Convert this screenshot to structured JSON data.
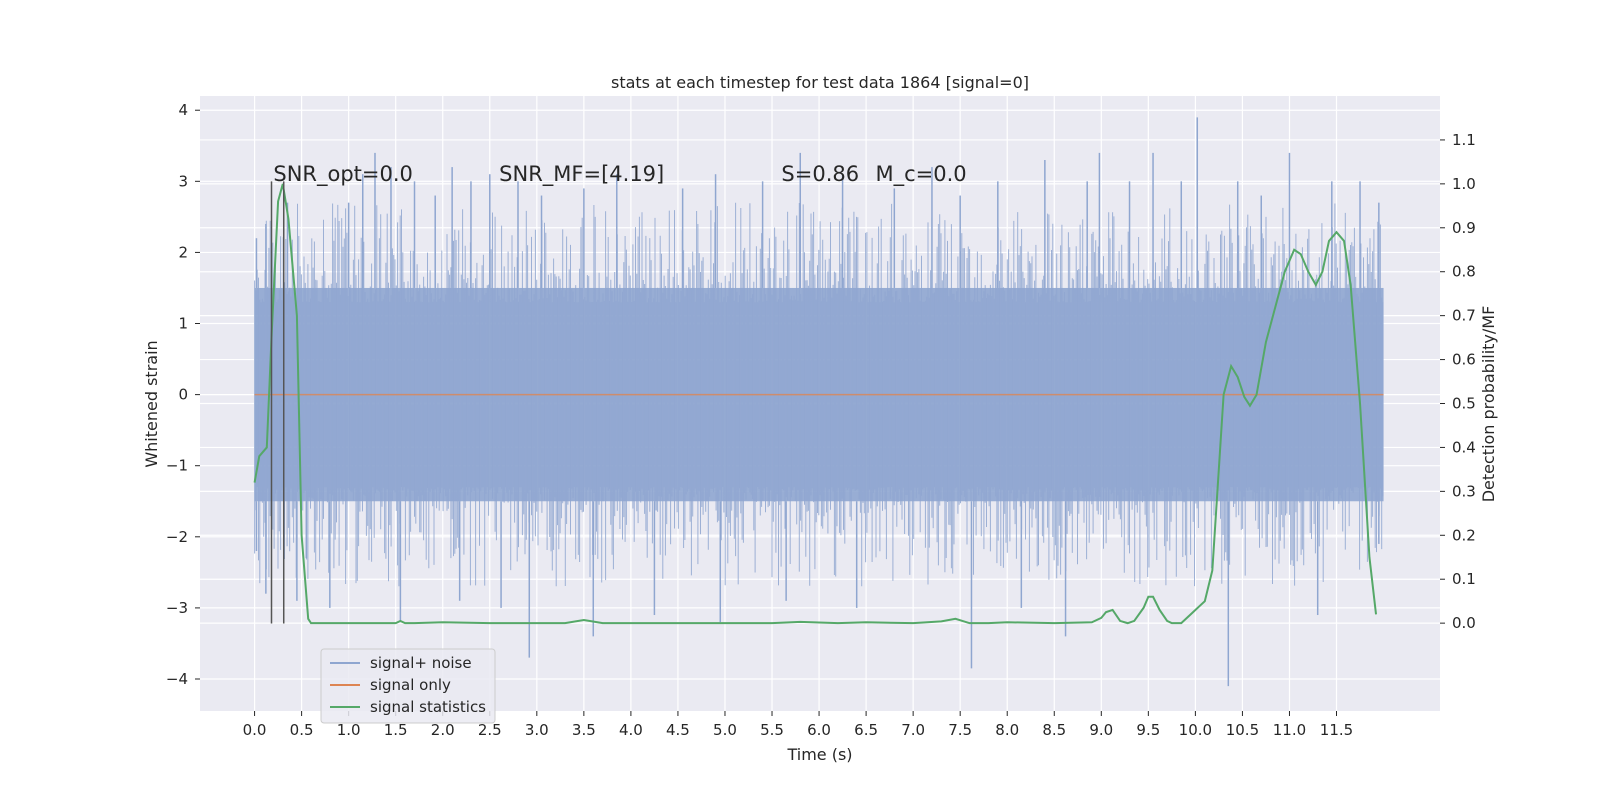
{
  "chart_data": {
    "type": "line",
    "title": "stats at each timestep for test data 1864 [signal=0]",
    "xlabel": "Time (s)",
    "ylabel": "Whitened strain",
    "ylabel_right": "Detection probability/MF",
    "xlim": [
      -0.58,
      12.6
    ],
    "ylim": [
      -4.45,
      4.2
    ],
    "ylim_right": [
      -0.2,
      1.2
    ],
    "x_ticks": [
      0.0,
      0.5,
      1.0,
      1.5,
      2.0,
      2.5,
      3.0,
      3.5,
      4.0,
      4.5,
      5.0,
      5.5,
      6.0,
      6.5,
      7.0,
      7.5,
      8.0,
      8.5,
      9.0,
      9.5,
      10.0,
      10.5,
      11.0,
      11.5
    ],
    "x_tick_labels": [
      "0.0",
      "0.5",
      "1.0",
      "1.5",
      "2.0",
      "2.5",
      "3.0",
      "3.5",
      "4.0",
      "4.5",
      "5.0",
      "5.5",
      "6.0",
      "6.5",
      "7.0",
      "7.5",
      "8.0",
      "8.5",
      "9.0",
      "9.5",
      "10.0",
      "10.5",
      "11.0",
      "11.5"
    ],
    "y_ticks": [
      -4,
      -3,
      -2,
      -1,
      0,
      1,
      2,
      3,
      4
    ],
    "y_tick_labels": [
      "−4",
      "−3",
      "−2",
      "−1",
      "0",
      "1",
      "2",
      "3",
      "4"
    ],
    "y_right_ticks": [
      0.0,
      0.1,
      0.2,
      0.3,
      0.4,
      0.5,
      0.6,
      0.7,
      0.8,
      0.9,
      1.0,
      1.1
    ],
    "y_right_tick_labels": [
      "0.0",
      "0.1",
      "0.2",
      "0.3",
      "0.4",
      "0.5",
      "0.6",
      "0.7",
      "0.8",
      "0.9",
      "1.0",
      "1.1"
    ],
    "grid": true,
    "legend_position": "lower-left",
    "annotations": [
      {
        "text": "SNR_opt=0.0",
        "x": 0.2,
        "y": 3.1
      },
      {
        "text": "SNR_MF=[4.19]",
        "x": 2.6,
        "y": 3.1
      },
      {
        "text": "S=0.86",
        "x": 5.6,
        "y": 3.1
      },
      {
        "text": "M_c=0.0",
        "x": 6.6,
        "y": 3.1
      }
    ],
    "vertical_markers": {
      "x": [
        0.18,
        0.31
      ],
      "y_range": [
        -3.22,
        3.0
      ],
      "color": "#555555"
    },
    "series": [
      {
        "name": "signal+ noise",
        "color": "#8fa6d0",
        "kind": "noise-band",
        "x_range": [
          0.0,
          12.0
        ],
        "core_band": [
          -1.5,
          1.5
        ],
        "peaks": [
          {
            "x": 0.02,
            "y": 2.2
          },
          {
            "x": 0.02,
            "y": -2.2
          },
          {
            "x": 0.12,
            "y": 2.4
          },
          {
            "x": 0.12,
            "y": -2.8
          },
          {
            "x": 0.35,
            "y": 2.7
          },
          {
            "x": 0.45,
            "y": -2.9
          },
          {
            "x": 0.55,
            "y": -2.3
          },
          {
            "x": 0.8,
            "y": -3.0
          },
          {
            "x": 1.0,
            "y": 2.7
          },
          {
            "x": 1.15,
            "y": 3.1
          },
          {
            "x": 1.28,
            "y": 3.4
          },
          {
            "x": 1.45,
            "y": 3.2
          },
          {
            "x": 1.55,
            "y": -3.2
          },
          {
            "x": 1.7,
            "y": 3.0
          },
          {
            "x": 1.92,
            "y": 2.8
          },
          {
            "x": 2.1,
            "y": 3.2
          },
          {
            "x": 2.3,
            "y": 3.0
          },
          {
            "x": 2.18,
            "y": -2.9
          },
          {
            "x": 2.5,
            "y": 3.1
          },
          {
            "x": 2.62,
            "y": -3.0
          },
          {
            "x": 2.8,
            "y": 3.0
          },
          {
            "x": 2.92,
            "y": -3.7
          },
          {
            "x": 3.05,
            "y": 2.8
          },
          {
            "x": 3.5,
            "y": 2.9
          },
          {
            "x": 3.6,
            "y": -3.4
          },
          {
            "x": 3.85,
            "y": 3.1
          },
          {
            "x": 4.25,
            "y": -3.1
          },
          {
            "x": 4.55,
            "y": 2.9
          },
          {
            "x": 4.9,
            "y": 3.1
          },
          {
            "x": 4.95,
            "y": -3.2
          },
          {
            "x": 5.4,
            "y": 3.0
          },
          {
            "x": 5.65,
            "y": -2.9
          },
          {
            "x": 5.8,
            "y": 3.4
          },
          {
            "x": 6.25,
            "y": 3.1
          },
          {
            "x": 6.4,
            "y": -3.0
          },
          {
            "x": 6.8,
            "y": 2.9
          },
          {
            "x": 7.2,
            "y": 3.2
          },
          {
            "x": 7.62,
            "y": -3.85
          },
          {
            "x": 7.5,
            "y": 2.8
          },
          {
            "x": 7.9,
            "y": 3.0
          },
          {
            "x": 8.15,
            "y": -3.0
          },
          {
            "x": 8.4,
            "y": 3.3
          },
          {
            "x": 8.62,
            "y": -3.4
          },
          {
            "x": 8.85,
            "y": 3.0
          },
          {
            "x": 8.98,
            "y": 3.4
          },
          {
            "x": 9.3,
            "y": 3.0
          },
          {
            "x": 9.55,
            "y": 3.4
          },
          {
            "x": 9.85,
            "y": 3.0
          },
          {
            "x": 10.02,
            "y": 3.9
          },
          {
            "x": 10.35,
            "y": -4.1
          },
          {
            "x": 10.45,
            "y": 3.0
          },
          {
            "x": 10.7,
            "y": 2.8
          },
          {
            "x": 11.0,
            "y": 3.4
          },
          {
            "x": 11.3,
            "y": -3.1
          },
          {
            "x": 11.45,
            "y": 3.0
          },
          {
            "x": 11.75,
            "y": 3.0
          },
          {
            "x": 11.95,
            "y": 2.7
          },
          {
            "x": 11.95,
            "y": -2.1
          }
        ]
      },
      {
        "name": "signal only",
        "color": "#dd8452",
        "kind": "line",
        "x": [
          0.0,
          12.0
        ],
        "y": [
          0.0,
          0.0
        ]
      },
      {
        "name": "signal statistics",
        "color": "#55a868",
        "axis": "right",
        "kind": "line",
        "x": [
          0.0,
          0.05,
          0.13,
          0.18,
          0.25,
          0.3,
          0.36,
          0.45,
          0.5,
          0.57,
          0.6,
          0.7,
          0.8,
          1.0,
          1.2,
          1.5,
          1.55,
          1.6,
          1.7,
          2.0,
          2.5,
          3.0,
          3.3,
          3.5,
          3.7,
          4.0,
          5.0,
          5.5,
          5.8,
          6.2,
          6.5,
          7.0,
          7.3,
          7.45,
          7.6,
          7.8,
          8.0,
          8.5,
          8.9,
          9.0,
          9.05,
          9.12,
          9.2,
          9.28,
          9.35,
          9.45,
          9.5,
          9.55,
          9.62,
          9.7,
          9.75,
          9.85,
          9.95,
          10.05,
          10.1,
          10.18,
          10.3,
          10.38,
          10.45,
          10.52,
          10.58,
          10.65,
          10.75,
          10.85,
          10.95,
          11.05,
          11.12,
          11.2,
          11.28,
          11.35,
          11.42,
          11.5,
          11.58,
          11.65,
          11.75,
          11.85,
          11.92
        ],
        "y": [
          0.32,
          0.38,
          0.4,
          0.65,
          0.96,
          1.0,
          0.92,
          0.7,
          0.2,
          0.01,
          0.0,
          0.0,
          0.0,
          0.0,
          0.0,
          0.0,
          0.005,
          0.0,
          0.0,
          0.002,
          0.0,
          0.0,
          0.0,
          0.007,
          0.0,
          0.0,
          0.0,
          0.0,
          0.003,
          0.0,
          0.002,
          0.0,
          0.004,
          0.01,
          0.0,
          0.0,
          0.002,
          0.0,
          0.002,
          0.012,
          0.025,
          0.03,
          0.005,
          0.0,
          0.005,
          0.035,
          0.06,
          0.06,
          0.03,
          0.005,
          0.0,
          0.0,
          0.02,
          0.04,
          0.05,
          0.12,
          0.52,
          0.585,
          0.56,
          0.515,
          0.495,
          0.52,
          0.64,
          0.72,
          0.8,
          0.85,
          0.84,
          0.8,
          0.77,
          0.8,
          0.87,
          0.89,
          0.87,
          0.77,
          0.5,
          0.15,
          0.02
        ]
      }
    ]
  }
}
